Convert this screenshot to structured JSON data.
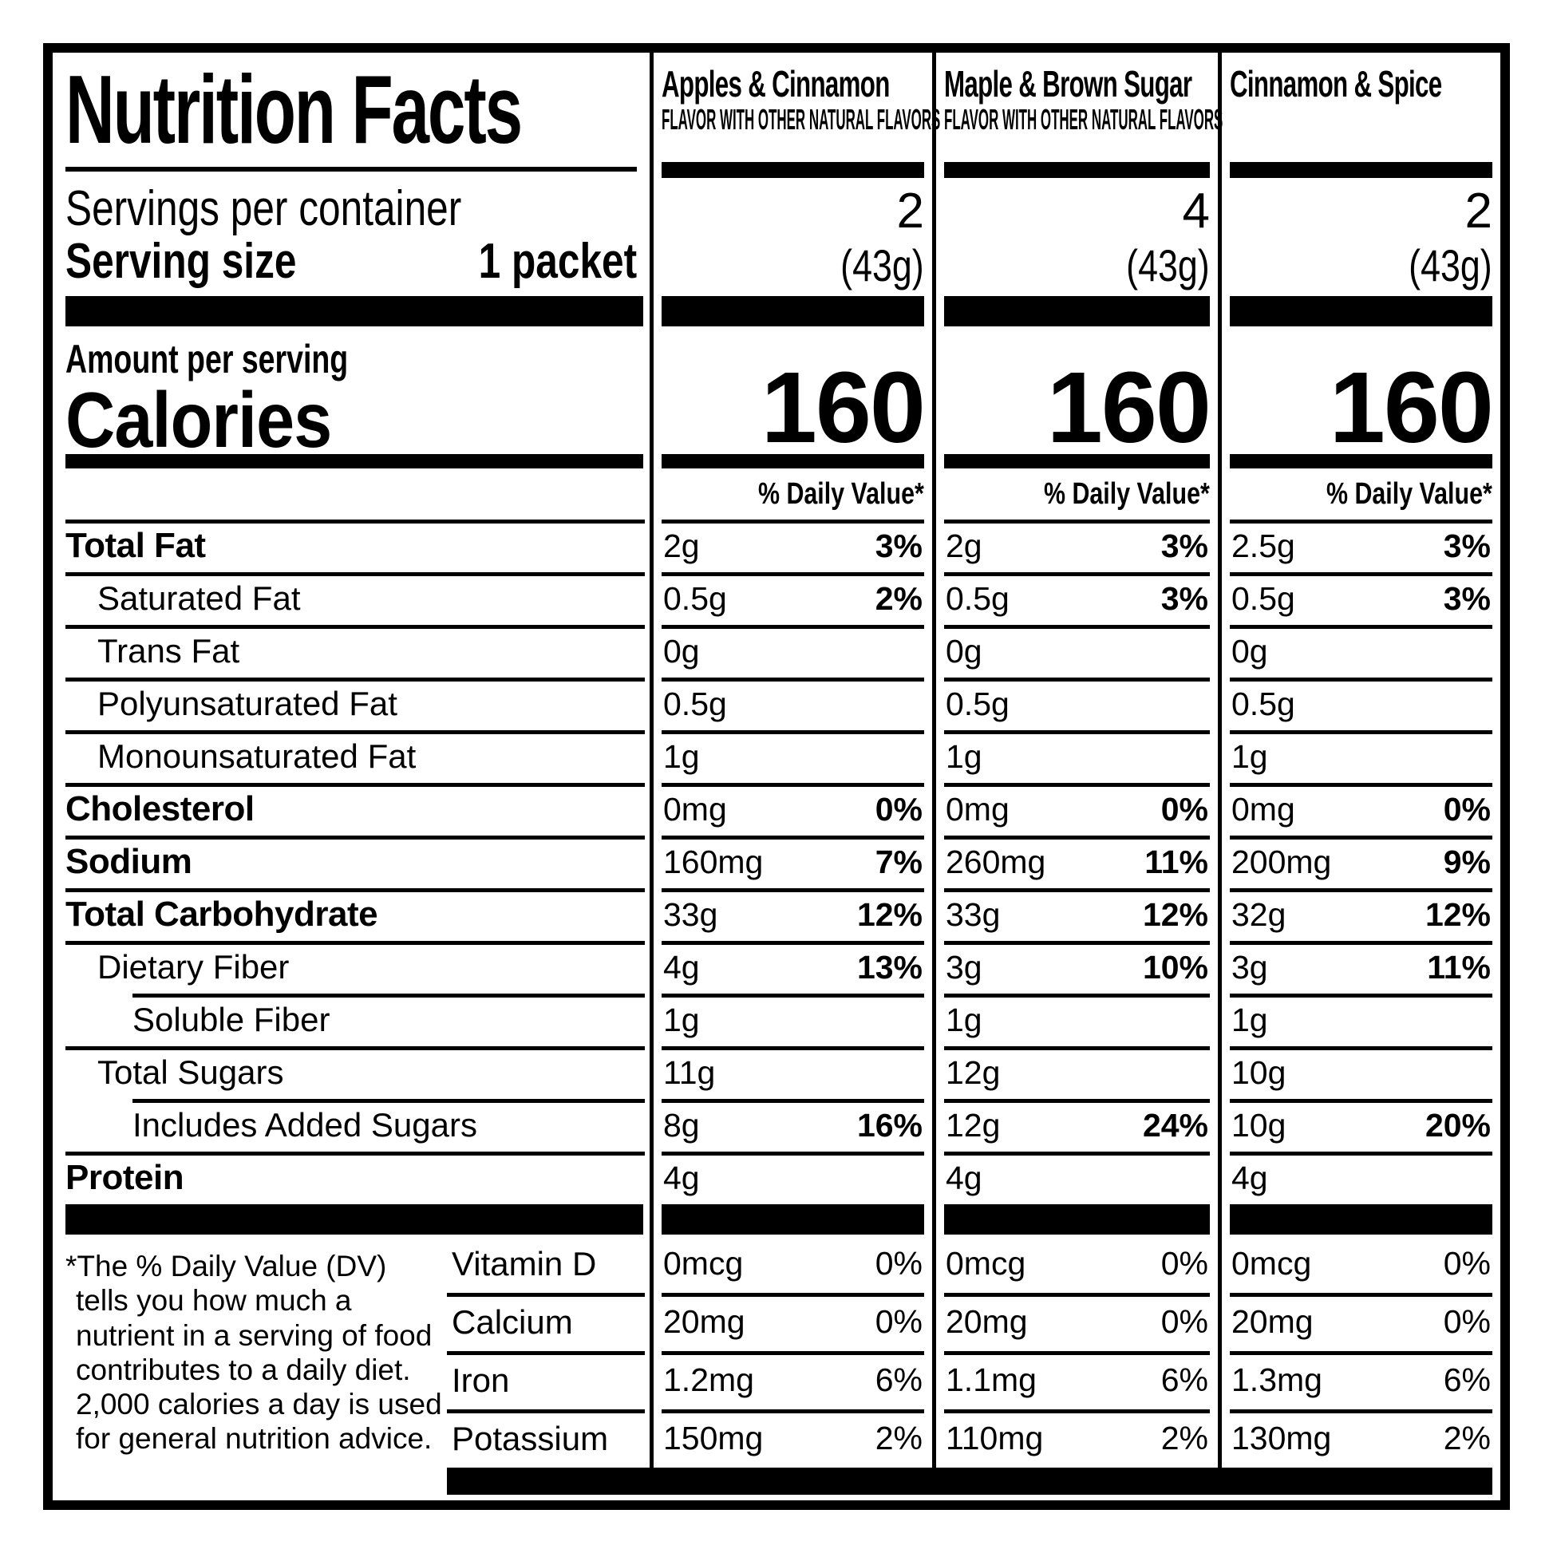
{
  "colors": {
    "ink": "#000000",
    "paper": "#ffffff"
  },
  "header": {
    "title": "Nutrition Facts",
    "servings_label": "Servings per container",
    "serving_size_label": "Serving size",
    "serving_size_value": "1 packet"
  },
  "columns": [
    {
      "name": "Apples & Cinnamon",
      "subtitle": "FLAVOR WITH OTHER NATURAL FLAVORS",
      "servings": "2",
      "serving_weight": "(43g)",
      "calories": "160"
    },
    {
      "name": "Maple & Brown Sugar",
      "subtitle": "FLAVOR WITH OTHER NATURAL FLAVORS",
      "servings": "4",
      "serving_weight": "(43g)",
      "calories": "160"
    },
    {
      "name": "Cinnamon & Spice",
      "subtitle": "",
      "servings": "2",
      "serving_weight": "(43g)",
      "calories": "160"
    }
  ],
  "calories_section": {
    "amount_label": "Amount per serving",
    "calories_label": "Calories",
    "dv_header": "% Daily Value*"
  },
  "nutrients": [
    {
      "label": "Total Fat",
      "values": [
        {
          "a": "2g",
          "d": "3%"
        },
        {
          "a": "2g",
          "d": "3%"
        },
        {
          "a": "2.5g",
          "d": "3%"
        }
      ]
    },
    {
      "label": "Saturated Fat",
      "values": [
        {
          "a": "0.5g",
          "d": "2%"
        },
        {
          "a": "0.5g",
          "d": "3%"
        },
        {
          "a": "0.5g",
          "d": "3%"
        }
      ]
    },
    {
      "label": "Trans Fat",
      "values": [
        {
          "a": "0g",
          "d": ""
        },
        {
          "a": "0g",
          "d": ""
        },
        {
          "a": "0g",
          "d": ""
        }
      ]
    },
    {
      "label": "Polyunsaturated Fat",
      "values": [
        {
          "a": "0.5g",
          "d": ""
        },
        {
          "a": "0.5g",
          "d": ""
        },
        {
          "a": "0.5g",
          "d": ""
        }
      ]
    },
    {
      "label": "Monounsaturated Fat",
      "values": [
        {
          "a": "1g",
          "d": ""
        },
        {
          "a": "1g",
          "d": ""
        },
        {
          "a": "1g",
          "d": ""
        }
      ]
    },
    {
      "label": "Cholesterol",
      "values": [
        {
          "a": "0mg",
          "d": "0%"
        },
        {
          "a": "0mg",
          "d": "0%"
        },
        {
          "a": "0mg",
          "d": "0%"
        }
      ]
    },
    {
      "label": "Sodium",
      "values": [
        {
          "a": "160mg",
          "d": "7%"
        },
        {
          "a": "260mg",
          "d": "11%"
        },
        {
          "a": "200mg",
          "d": "9%"
        }
      ]
    },
    {
      "label": "Total Carbohydrate",
      "values": [
        {
          "a": "33g",
          "d": "12%"
        },
        {
          "a": "33g",
          "d": "12%"
        },
        {
          "a": "32g",
          "d": "12%"
        }
      ]
    },
    {
      "label": "Dietary Fiber",
      "values": [
        {
          "a": "4g",
          "d": "13%"
        },
        {
          "a": "3g",
          "d": "10%"
        },
        {
          "a": "3g",
          "d": "11%"
        }
      ]
    },
    {
      "label": "Soluble Fiber",
      "values": [
        {
          "a": "1g",
          "d": ""
        },
        {
          "a": "1g",
          "d": ""
        },
        {
          "a": "1g",
          "d": ""
        }
      ]
    },
    {
      "label": "Total Sugars",
      "values": [
        {
          "a": "11g",
          "d": ""
        },
        {
          "a": "12g",
          "d": ""
        },
        {
          "a": "10g",
          "d": ""
        }
      ]
    },
    {
      "label": "Includes Added Sugars",
      "values": [
        {
          "a": "8g",
          "d": "16%"
        },
        {
          "a": "12g",
          "d": "24%"
        },
        {
          "a": "10g",
          "d": "20%"
        }
      ]
    },
    {
      "label": "Protein",
      "values": [
        {
          "a": "4g",
          "d": ""
        },
        {
          "a": "4g",
          "d": ""
        },
        {
          "a": "4g",
          "d": ""
        }
      ]
    }
  ],
  "vitamins": [
    {
      "label": "Vitamin D",
      "values": [
        {
          "a": "0mcg",
          "d": "0%"
        },
        {
          "a": "0mcg",
          "d": "0%"
        },
        {
          "a": "0mcg",
          "d": "0%"
        }
      ]
    },
    {
      "label": "Calcium",
      "values": [
        {
          "a": "20mg",
          "d": "0%"
        },
        {
          "a": "20mg",
          "d": "0%"
        },
        {
          "a": "20mg",
          "d": "0%"
        }
      ]
    },
    {
      "label": "Iron",
      "values": [
        {
          "a": "1.2mg",
          "d": "6%"
        },
        {
          "a": "1.1mg",
          "d": "6%"
        },
        {
          "a": "1.3mg",
          "d": "6%"
        }
      ]
    },
    {
      "label": "Potassium",
      "values": [
        {
          "a": "150mg",
          "d": "2%"
        },
        {
          "a": "110mg",
          "d": "2%"
        },
        {
          "a": "130mg",
          "d": "2%"
        }
      ]
    }
  ],
  "footnote": "*The % Daily Value (DV) tells you how much a nutrient in a serving of food contributes to a daily diet. 2,000 calories a day is used for general nutrition advice."
}
